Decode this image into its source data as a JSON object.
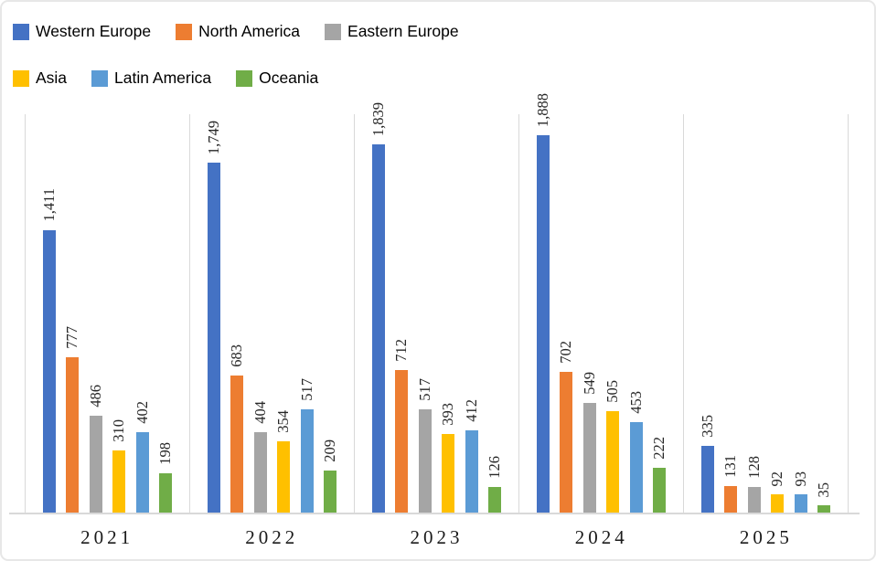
{
  "chart_data": {
    "type": "bar",
    "title": "",
    "categories": [
      "2021",
      "2022",
      "2023",
      "2024",
      "2025"
    ],
    "series": [
      {
        "name": "Western Europe",
        "color": "#4472C4",
        "values": [
          1411,
          1749,
          1839,
          1888,
          335
        ],
        "value_labels": [
          "1,411",
          "1,749",
          "1,839",
          "1,888",
          "335"
        ]
      },
      {
        "name": "North America",
        "color": "#ED7D31",
        "values": [
          777,
          683,
          712,
          702,
          131
        ],
        "value_labels": [
          "777",
          "683",
          "712",
          "702",
          "131"
        ]
      },
      {
        "name": "Eastern Europe",
        "color": "#A5A5A5",
        "values": [
          486,
          404,
          517,
          549,
          128
        ],
        "value_labels": [
          "486",
          "404",
          "517",
          "549",
          "128"
        ]
      },
      {
        "name": "Asia",
        "color": "#FFC000",
        "values": [
          310,
          354,
          393,
          505,
          92
        ],
        "value_labels": [
          "310",
          "354",
          "393",
          "505",
          "92"
        ]
      },
      {
        "name": "Latin America",
        "color": "#5B9BD5",
        "values": [
          402,
          517,
          412,
          453,
          93
        ],
        "value_labels": [
          "402",
          "517",
          "412",
          "453",
          "93"
        ]
      },
      {
        "name": "Oceania",
        "color": "#70AD47",
        "values": [
          198,
          209,
          126,
          222,
          35
        ],
        "value_labels": [
          "198",
          "209",
          "126",
          "222",
          "35"
        ]
      }
    ],
    "xlabel": "",
    "ylabel": "",
    "ylim": [
      0,
      2000
    ],
    "grid": "vertical-category-separators",
    "data_label_rotation": 90,
    "legend_position": "top-left",
    "legend_rows": [
      3,
      3
    ]
  },
  "style": {
    "axis_line_color": "#d9d9d9",
    "separator_color": "#d9d9d9",
    "label_color": "#262626",
    "frame_border_color": "#e7e7e7",
    "background": "#ffffff"
  }
}
